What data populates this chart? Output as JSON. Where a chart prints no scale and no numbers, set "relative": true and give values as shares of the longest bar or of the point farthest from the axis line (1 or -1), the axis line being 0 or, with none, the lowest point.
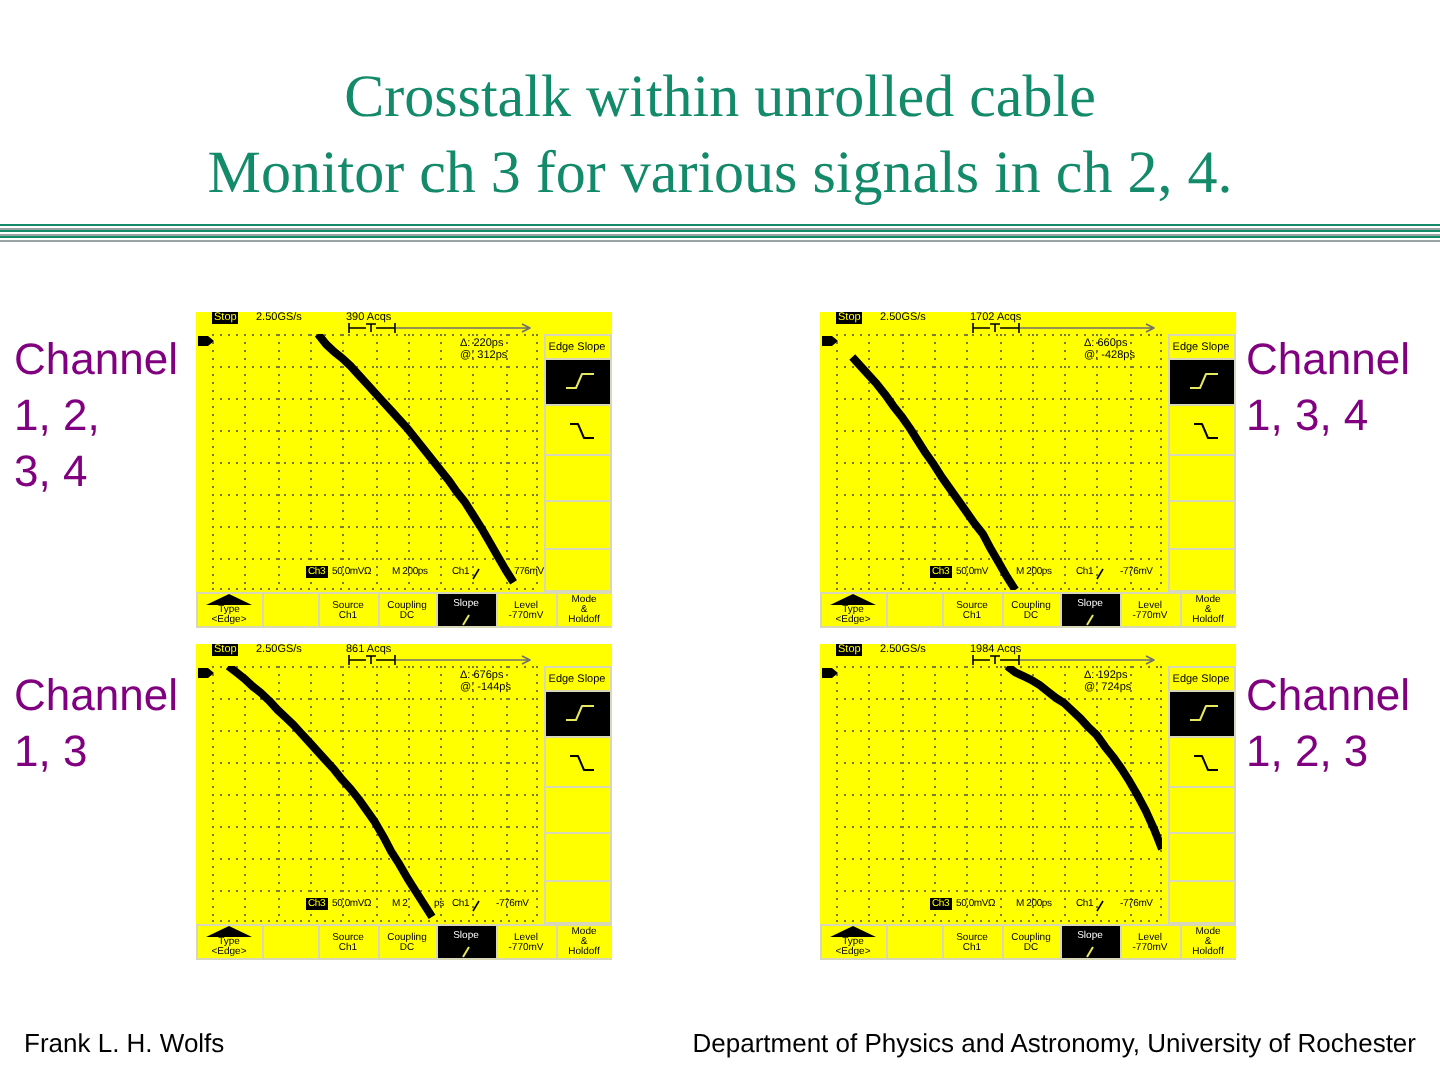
{
  "chart_data": [
    {
      "type": "line",
      "title": "Crosstalk within unrolled cable",
      "subtitle": "Monitor ch 3 for various signals in ch 2, 4.",
      "categories": [
        null,
        null,
        null,
        null,
        null,
        null,
        null,
        null,
        null,
        null,
        null,
        null,
        null,
        null,
        null,
        null,
        null,
        null,
        null,
        null,
        null,
        null,
        null,
        null,
        null,
        null,
        null,
        null,
        null,
        null,
        null,
        null,
        null,
        null,
        null,
        null,
        null,
        null,
        null,
        null,
        null
      ],
      "values": [
        null,
        null,
        null,
        null,
        null,
        null,
        null,
        null,
        null,
        null,
        null,
        null,
        null,
        1.0,
        0.92,
        0.86,
        0.81,
        0.75,
        0.68,
        0.61,
        0.54,
        0.47,
        0.4,
        0.33,
        0.26,
        0.18,
        0.1,
        0.02,
        -0.06,
        -0.14,
        -0.23,
        -0.31,
        -0.41,
        -0.51,
        -0.62,
        -0.73,
        -0.84,
        -0.94,
        null,
        null,
        null
      ],
      "color": "#000000",
      "relative": true,
      "grid": true,
      "marker": "none",
      "tick_labels": false,
      "annotations": [
        "Channel\n1, 2,\n3, 4",
        "Stop",
        "2.50GS/s",
        "390 Acqs",
        "Δ: 220ps",
        "@: 312ps",
        "Ch3",
        "50.0mVΩ",
        "M 200ps",
        "Ch1",
        "776mV",
        "Edge Slope",
        "Type\n<Edge>",
        "Source\nCh1",
        "Coupling\nDC",
        "Slope",
        "Level\n-770mV",
        "Mode\n&\nHoldoff",
        "Frank L. H. Wolfs",
        "Department of Physics and Astronomy, University of Rochester"
      ]
    },
    {
      "type": "line",
      "categories": [
        null,
        null,
        null,
        null,
        null,
        null,
        null,
        null,
        null,
        null,
        null,
        null,
        null,
        null,
        null,
        null,
        null,
        null,
        null,
        null,
        null,
        null,
        null,
        null,
        null,
        null,
        null,
        null,
        null,
        null,
        null,
        null,
        null,
        null,
        null,
        null,
        null,
        null,
        null,
        null,
        null
      ],
      "values": [
        null,
        null,
        0.82,
        0.75,
        0.68,
        0.61,
        0.53,
        0.44,
        0.36,
        0.27,
        0.17,
        0.07,
        -0.02,
        -0.12,
        -0.21,
        -0.3,
        -0.39,
        -0.48,
        -0.56,
        -0.68,
        -0.79,
        -0.9,
        -1.0,
        null,
        null,
        null,
        null,
        null,
        null,
        null,
        null,
        null,
        null,
        null,
        null,
        null,
        null,
        null,
        null,
        null,
        null
      ],
      "color": "#000000",
      "relative": true,
      "grid": true,
      "marker": "none",
      "tick_labels": false,
      "annotations": [
        "Channel\n1, 3, 4",
        "Stop",
        "2.50GS/s",
        "1702 Acqs",
        "Δ: 660ps",
        "@: -428ps",
        "Ch3",
        "50.0mV",
        "M 200ps",
        "Ch1",
        "-776mV",
        "Edge Slope",
        "Type\n<Edge>",
        "Source\nCh1",
        "Coupling\nDC",
        "Slope",
        "Level\n-770mV",
        "Mode\n&\nHoldoff"
      ]
    },
    {
      "type": "line",
      "categories": [
        null,
        null,
        null,
        null,
        null,
        null,
        null,
        null,
        null,
        null,
        null,
        null,
        null,
        null,
        null,
        null,
        null,
        null,
        null,
        null,
        null,
        null,
        null,
        null,
        null,
        null,
        null,
        null,
        null,
        null,
        null,
        null,
        null,
        null,
        null,
        null,
        null,
        null,
        null,
        null,
        null
      ],
      "values": [
        null,
        null,
        1.0,
        0.95,
        0.9,
        0.84,
        0.79,
        0.73,
        0.66,
        0.6,
        0.54,
        0.47,
        0.4,
        0.33,
        0.26,
        0.19,
        0.11,
        0.04,
        -0.04,
        -0.13,
        -0.22,
        -0.33,
        -0.45,
        -0.55,
        -0.66,
        -0.76,
        -0.86,
        -0.96,
        null,
        null,
        null,
        null,
        null,
        null,
        null,
        null,
        null,
        null,
        null,
        null,
        null
      ],
      "color": "#000000",
      "relative": true,
      "grid": true,
      "marker": "none",
      "tick_labels": false,
      "annotations": [
        "Channel\n1, 3",
        "Stop",
        "2.50GS/s",
        "861 Acqs",
        "Δ: 676ps",
        "@: -144ps",
        "Ch3",
        "50.0mVΩ",
        "M 2",
        "ps",
        "Ch1",
        "-776mV",
        "Edge Slope",
        "Type\n<Edge>",
        "Source\nCh1",
        "Coupling\nDC",
        "Slope",
        "Level\n-770mV",
        "Mode\n&\nHoldoff"
      ]
    },
    {
      "type": "line",
      "categories": [
        null,
        null,
        null,
        null,
        null,
        null,
        null,
        null,
        null,
        null,
        null,
        null,
        null,
        null,
        null,
        null,
        null,
        null,
        null,
        null,
        null,
        null,
        null,
        null,
        null,
        null,
        null,
        null,
        null,
        null,
        null,
        null,
        null,
        null,
        null,
        null,
        null,
        null,
        null,
        null,
        null
      ],
      "values": [
        null,
        null,
        null,
        null,
        null,
        null,
        null,
        null,
        null,
        null,
        null,
        null,
        null,
        null,
        null,
        null,
        null,
        null,
        null,
        null,
        null,
        1.0,
        0.95,
        0.92,
        0.89,
        0.85,
        0.8,
        0.75,
        0.71,
        0.65,
        0.59,
        0.52,
        0.46,
        0.37,
        0.29,
        0.2,
        0.1,
        -0.01,
        -0.13,
        -0.27,
        -0.43
      ],
      "color": "#000000",
      "relative": true,
      "grid": true,
      "marker": "none",
      "tick_labels": false,
      "annotations": [
        "Channel\n1, 2, 3",
        "Stop",
        "2.50GS/s",
        "1984 Acqs",
        "Δ: 192ps",
        "@: 724ps",
        "Ch3",
        "50.0mVΩ",
        "M 200ps",
        "Ch1",
        "-776mV",
        "Edge Slope",
        "Type\n<Edge>",
        "Source\nCh1",
        "Coupling\nDC",
        "Slope",
        "Level\n-770mV",
        "Mode\n&\nHoldoff"
      ]
    }
  ]
}
